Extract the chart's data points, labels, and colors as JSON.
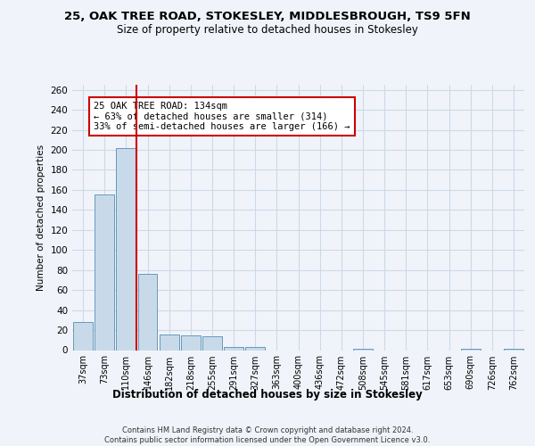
{
  "title": "25, OAK TREE ROAD, STOKESLEY, MIDDLESBROUGH, TS9 5FN",
  "subtitle": "Size of property relative to detached houses in Stokesley",
  "xlabel": "Distribution of detached houses by size in Stokesley",
  "ylabel": "Number of detached properties",
  "bar_values": [
    28,
    155,
    202,
    76,
    16,
    15,
    14,
    3,
    3,
    0,
    0,
    0,
    0,
    1,
    0,
    0,
    0,
    0,
    1,
    0,
    1
  ],
  "bin_labels": [
    "37sqm",
    "73sqm",
    "110sqm",
    "146sqm",
    "182sqm",
    "218sqm",
    "255sqm",
    "291sqm",
    "327sqm",
    "363sqm",
    "400sqm",
    "436sqm",
    "472sqm",
    "508sqm",
    "545sqm",
    "581sqm",
    "617sqm",
    "653sqm",
    "690sqm",
    "726sqm",
    "762sqm"
  ],
  "bar_color": "#c8daea",
  "bar_edge_color": "#6699bb",
  "grid_color": "#cdd8e8",
  "vline_color": "#cc0000",
  "annotation_text": "25 OAK TREE ROAD: 134sqm\n← 63% of detached houses are smaller (314)\n33% of semi-detached houses are larger (166) →",
  "annotation_box_color": "white",
  "annotation_box_edge": "#cc0000",
  "ylim": [
    0,
    265
  ],
  "yticks": [
    0,
    20,
    40,
    60,
    80,
    100,
    120,
    140,
    160,
    180,
    200,
    220,
    240,
    260
  ],
  "footer": "Contains HM Land Registry data © Crown copyright and database right 2024.\nContains public sector information licensed under the Open Government Licence v3.0.",
  "bg_color": "#f0f4fa"
}
